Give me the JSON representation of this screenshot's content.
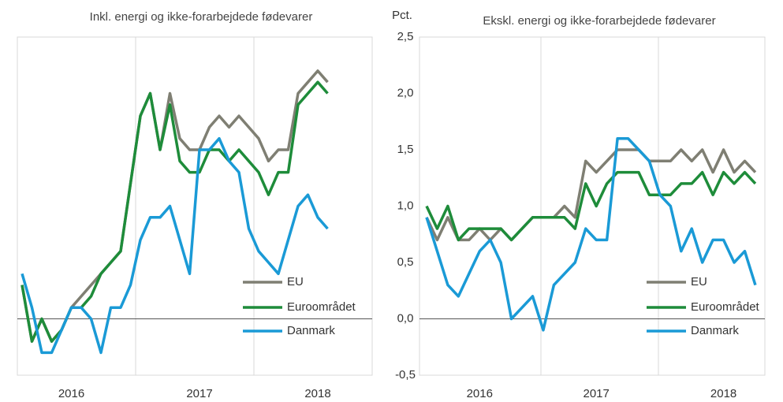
{
  "chart_data": [
    {
      "type": "line",
      "title": "Inkl. energi og ikke-forarbejdede fødevarer",
      "categories": [
        null,
        null,
        null,
        null,
        null,
        "2016",
        null,
        null,
        null,
        null,
        null,
        null,
        null,
        null,
        null,
        null,
        null,
        null,
        "2017",
        null,
        null,
        null,
        null,
        null,
        null,
        null,
        null,
        null,
        null,
        null,
        "2018",
        null
      ],
      "ylim": [
        -0.5,
        2.5
      ],
      "legend": "lower right",
      "series": [
        {
          "name": "EU",
          "color": "#7f7f73",
          "values": [
            0.3,
            -0.2,
            0.0,
            -0.2,
            -0.1,
            0.1,
            0.2,
            0.3,
            0.4,
            0.5,
            0.6,
            1.2,
            1.8,
            2.0,
            1.5,
            2.0,
            1.6,
            1.5,
            1.5,
            1.7,
            1.8,
            1.7,
            1.8,
            1.7,
            1.6,
            1.4,
            1.5,
            1.5,
            2.0,
            2.1,
            2.2,
            2.1
          ]
        },
        {
          "name": "Euroområdet",
          "color": "#1e8c3a",
          "values": [
            0.3,
            -0.2,
            0.0,
            -0.2,
            -0.1,
            0.1,
            0.1,
            0.2,
            0.4,
            0.5,
            0.6,
            1.2,
            1.8,
            2.0,
            1.5,
            1.9,
            1.4,
            1.3,
            1.3,
            1.5,
            1.5,
            1.4,
            1.5,
            1.4,
            1.3,
            1.1,
            1.3,
            1.3,
            1.9,
            2.0,
            2.1,
            2.0
          ]
        },
        {
          "name": "Danmark",
          "color": "#1a9ad6",
          "values": [
            0.4,
            0.1,
            -0.3,
            -0.3,
            -0.1,
            0.1,
            0.1,
            0.0,
            -0.3,
            0.1,
            0.1,
            0.3,
            0.7,
            0.9,
            0.9,
            1.0,
            0.7,
            0.4,
            1.5,
            1.5,
            1.6,
            1.4,
            1.3,
            0.8,
            0.6,
            0.5,
            0.4,
            0.7,
            1.0,
            1.1,
            0.9,
            0.8
          ]
        }
      ]
    },
    {
      "type": "line",
      "title": "Ekskl. energi og ikke-forarbejdede fødevarer",
      "y_label": "Pct.",
      "categories": [
        null,
        null,
        null,
        null,
        null,
        "2016",
        null,
        null,
        null,
        null,
        null,
        null,
        null,
        null,
        null,
        null,
        "2017",
        null,
        null,
        null,
        null,
        null,
        null,
        null,
        null,
        null,
        null,
        null,
        "2018",
        null,
        null,
        null
      ],
      "ylim": [
        -0.5,
        2.5
      ],
      "yticks": [
        {
          "value": -0.5,
          "label": "-0,5"
        },
        {
          "value": 0,
          "label": "0,0"
        },
        {
          "value": 0.5,
          "label": "0,5"
        },
        {
          "value": 1,
          "label": "1,0"
        },
        {
          "value": 1.5,
          "label": "1,5"
        },
        {
          "value": 2,
          "label": "2,0"
        },
        {
          "value": 2.5,
          "label": "2,5"
        }
      ],
      "legend": "lower right",
      "series": [
        {
          "name": "EU",
          "color": "#7f7f73",
          "values": [
            0.9,
            0.7,
            0.9,
            0.7,
            0.7,
            0.8,
            0.7,
            0.8,
            0.7,
            0.8,
            0.9,
            0.9,
            0.9,
            1.0,
            0.9,
            1.4,
            1.3,
            1.4,
            1.5,
            1.5,
            1.5,
            1.4,
            1.4,
            1.4,
            1.5,
            1.4,
            1.5,
            1.3,
            1.5,
            1.3,
            1.4,
            1.3
          ]
        },
        {
          "name": "Euroområdet",
          "color": "#1e8c3a",
          "values": [
            1.0,
            0.8,
            1.0,
            0.7,
            0.8,
            0.8,
            0.8,
            0.8,
            0.7,
            0.8,
            0.9,
            0.9,
            0.9,
            0.9,
            0.8,
            1.2,
            1.0,
            1.2,
            1.3,
            1.3,
            1.3,
            1.1,
            1.1,
            1.1,
            1.2,
            1.2,
            1.3,
            1.1,
            1.3,
            1.2,
            1.3,
            1.2
          ]
        },
        {
          "name": "Danmark",
          "color": "#1a9ad6",
          "values": [
            0.9,
            0.6,
            0.3,
            0.2,
            0.4,
            0.6,
            0.7,
            0.5,
            0.0,
            0.1,
            0.2,
            -0.1,
            0.3,
            0.4,
            0.5,
            0.8,
            0.7,
            0.7,
            1.6,
            1.6,
            1.5,
            1.4,
            1.1,
            1.0,
            0.6,
            0.8,
            0.5,
            0.7,
            0.7,
            0.5,
            0.6,
            0.3
          ]
        }
      ]
    }
  ]
}
